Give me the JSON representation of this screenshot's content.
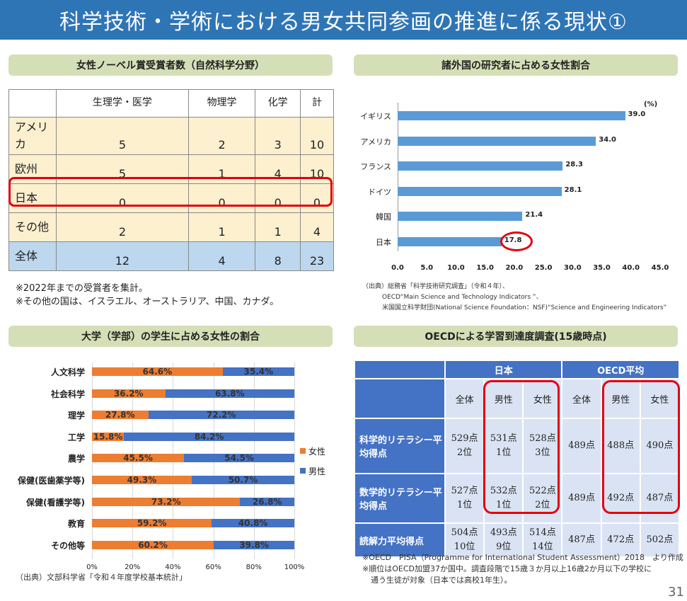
{
  "header": {
    "title": "科学技術・学術における男女共同参画の推進に係る現状①",
    "page_number": "31"
  },
  "nobel": {
    "title": "女性ノーベル賞受賞者数（自然科学分野）",
    "columns": [
      "生理学・医学",
      "物理学",
      "化学",
      "計"
    ],
    "rows": [
      {
        "label": "アメリカ",
        "values": [
          "5",
          "2",
          "3",
          "10"
        ]
      },
      {
        "label": "欧州",
        "values": [
          "5",
          "1",
          "4",
          "10"
        ]
      },
      {
        "label": "日本",
        "values": [
          "0",
          "0",
          "0",
          "0"
        ]
      },
      {
        "label": "その他",
        "values": [
          "2",
          "1",
          "1",
          "4"
        ]
      },
      {
        "label": "全体",
        "values": [
          "12",
          "4",
          "8",
          "23"
        ]
      }
    ],
    "notes": [
      "※2022年までの受賞者を集計。",
      "※その他の国は、イスラエル、オーストラリア、中国、カナダ。"
    ]
  },
  "researchers": {
    "title": "諸外国の研究者に占める女性割合",
    "source": [
      "（出典）総務省「科学技術研究調査」（令和４年）、",
      "OECD“Main Science and Technology Indicators ”、",
      "米国国立科学財団(National Science Foundation：NSF)“Science and Engineering Indicators”"
    ]
  },
  "university": {
    "title": "大学（学部）の学生に占める女性の割合",
    "source": "（出典）文部科学省「令和４年度学校基本統計」"
  },
  "oecd": {
    "title": "OECDによる学習到達度調査(15歳時点)",
    "group_headers": [
      "日本",
      "OECD平均"
    ],
    "sub_headers": [
      "全体",
      "男性",
      "女性",
      "全体",
      "男性",
      "女性"
    ],
    "rows": [
      {
        "label": "科学的リテラシー平均得点",
        "cells": [
          [
            "529点",
            "2位"
          ],
          [
            "531点",
            "1位"
          ],
          [
            "528点",
            "3位"
          ],
          [
            "489点",
            ""
          ],
          [
            "488点",
            ""
          ],
          [
            "490点",
            ""
          ]
        ]
      },
      {
        "label": "数学的リテラシー平均得点",
        "cells": [
          [
            "527点",
            "1位"
          ],
          [
            "532点",
            "1位"
          ],
          [
            "522点",
            "2位"
          ],
          [
            "489点",
            ""
          ],
          [
            "492点",
            ""
          ],
          [
            "487点",
            ""
          ]
        ]
      },
      {
        "label": "読解力平均得点",
        "cells": [
          [
            "504点",
            "10位"
          ],
          [
            "493点",
            "9位"
          ],
          [
            "514点",
            "14位"
          ],
          [
            "487点",
            ""
          ],
          [
            "472点",
            ""
          ],
          [
            "502点",
            ""
          ]
        ]
      }
    ],
    "notes": [
      "※OECD　PISA（Programme for International Student Assessment）2018　より作成",
      "※順位はOECD加盟37か国中。調査段階で15歳３か月以上16歳2か月以下の学校に",
      "通う生徒が対象（日本では高校1年生）。"
    ]
  },
  "chart_data": [
    {
      "type": "bar",
      "orientation": "horizontal",
      "title": "諸外国の研究者に占める女性割合",
      "unit": "(%)",
      "categories": [
        "イギリス",
        "アメリカ",
        "フランス",
        "ドイツ",
        "韓国",
        "日本"
      ],
      "values": [
        39.0,
        34.0,
        28.3,
        28.1,
        21.4,
        17.8
      ],
      "value_labels": [
        "39.0",
        "34.0",
        "28.3",
        "28.1",
        "21.4",
        "17.8"
      ],
      "xlim": [
        0,
        45
      ],
      "ticks": [
        "0.0",
        "5.0",
        "10.0",
        "15.0",
        "20.0",
        "25.0",
        "30.0",
        "35.0",
        "40.0",
        "45.0"
      ],
      "color": "#5b9bd5",
      "highlight": "日本",
      "highlight_color": "#e3000f"
    },
    {
      "type": "bar",
      "orientation": "horizontal",
      "stacked": true,
      "title": "大学（学部）の学生に占める女性の割合",
      "categories": [
        "人文科学",
        "社会科学",
        "理学",
        "工学",
        "農学",
        "保健(医歯薬学等)",
        "保健(看護学等)",
        "教育",
        "その他等"
      ],
      "series": [
        {
          "name": "女性",
          "color": "#ed7d31",
          "values": [
            64.6,
            36.2,
            27.8,
            15.8,
            45.5,
            49.3,
            73.2,
            59.2,
            60.2
          ],
          "labels": [
            "64.6%",
            "36.2%",
            "27.8%",
            "15.8%",
            "45.5%",
            "49.3%",
            "73.2%",
            "59.2%",
            "60.2%"
          ]
        },
        {
          "name": "男性",
          "color": "#4472c4",
          "values": [
            35.4,
            63.8,
            72.2,
            84.2,
            54.5,
            50.7,
            26.8,
            40.8,
            39.8
          ],
          "labels": [
            "35.4%",
            "63.8%",
            "72.2%",
            "84.2%",
            "54.5%",
            "50.7%",
            "26.8%",
            "40.8%",
            "39.8%"
          ]
        }
      ],
      "xlim": [
        0,
        100
      ],
      "ticks": [
        "0%",
        "20%",
        "40%",
        "60%",
        "80%",
        "100%"
      ],
      "legend": "right"
    }
  ]
}
